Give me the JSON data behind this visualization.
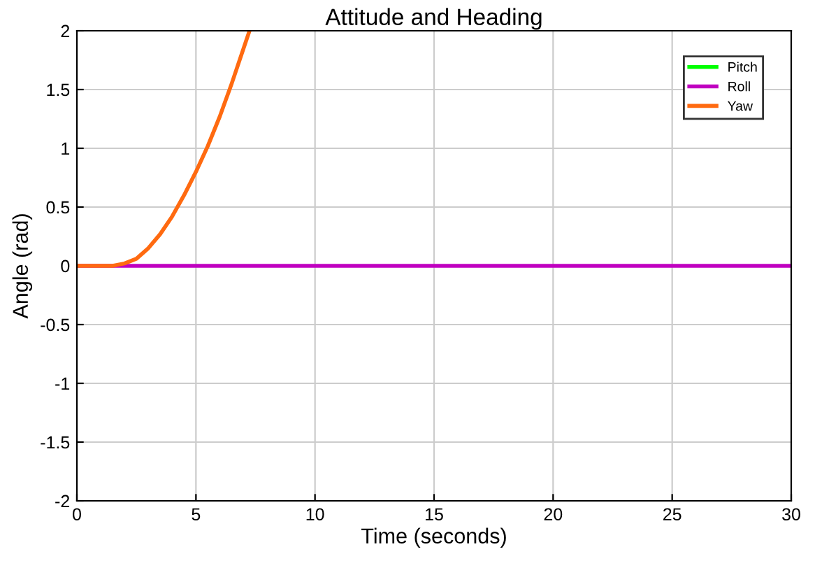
{
  "chart_data": {
    "type": "line",
    "title": "Attitude and Heading",
    "xlabel": "Time (seconds)",
    "ylabel": "Angle (rad)",
    "x": [
      0,
      30
    ],
    "series": [
      {
        "name": "Pitch",
        "color": "#00ff00",
        "values": [
          null,
          null
        ]
      },
      {
        "name": "Roll",
        "color": "#c000c0",
        "values": [
          0,
          0
        ]
      },
      {
        "name": "Yaw",
        "color": "#ff6a10",
        "x": [
          0,
          1.5,
          2,
          2.5,
          3,
          3.5,
          4,
          4.5,
          5,
          5.5,
          6,
          6.5,
          7,
          7.25
        ],
        "values": [
          0,
          0,
          0.02,
          0.06,
          0.15,
          0.27,
          0.42,
          0.6,
          0.8,
          1.02,
          1.27,
          1.55,
          1.85,
          2.0
        ]
      }
    ],
    "xlim": [
      0,
      30
    ],
    "xticks": [
      0,
      5,
      10,
      15,
      20,
      25,
      30
    ],
    "ylim": [
      -2,
      2
    ],
    "yticks": [
      -2,
      -1.5,
      -1,
      -0.5,
      0,
      0.5,
      1,
      1.5,
      2
    ],
    "grid": true,
    "legend": "top right"
  }
}
